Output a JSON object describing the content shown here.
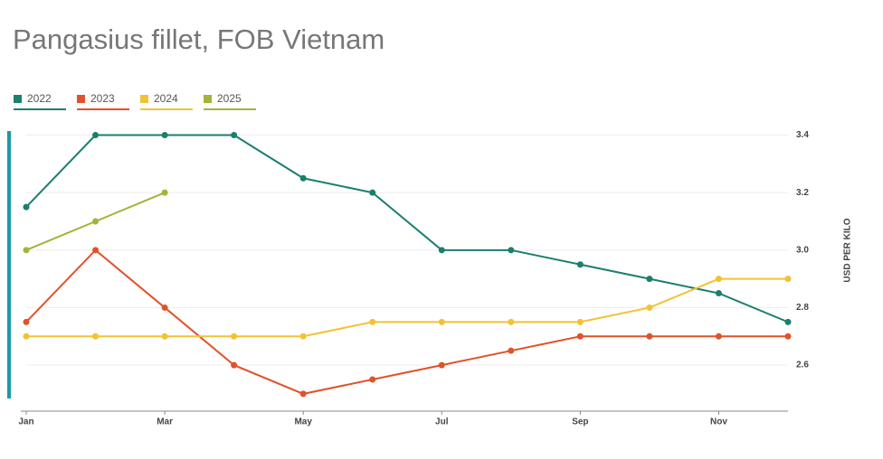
{
  "chart_data": {
    "type": "line",
    "title": "Pangasius fillet, FOB Vietnam",
    "y_axis_label": "USD PER KILO",
    "categories": [
      "Jan",
      null,
      "Mar",
      null,
      "May",
      null,
      "Jul",
      null,
      "Sep",
      null,
      "Nov",
      null
    ],
    "series": [
      {
        "name": "2022",
        "color": "#1a7f6e",
        "values": [
          3.15,
          3.4,
          3.4,
          3.4,
          3.25,
          3.2,
          3.0,
          3.0,
          2.95,
          2.9,
          2.85,
          2.75
        ]
      },
      {
        "name": "2023",
        "color": "#e0522a",
        "values": [
          2.75,
          3.0,
          2.8,
          2.6,
          2.5,
          2.55,
          2.6,
          2.65,
          2.7,
          2.7,
          2.7,
          2.7
        ]
      },
      {
        "name": "2024",
        "color": "#f2c232",
        "values": [
          2.7,
          2.7,
          2.7,
          2.7,
          2.7,
          2.75,
          2.75,
          2.75,
          2.75,
          2.8,
          2.9,
          2.9
        ]
      },
      {
        "name": "2025",
        "color": "#a4b33a",
        "values": [
          3.0,
          3.1,
          3.2,
          null,
          null,
          null,
          null,
          null,
          null,
          null,
          null,
          null
        ]
      }
    ],
    "ylim": [
      2.44,
      3.43
    ],
    "yticks": [
      2.6,
      2.8,
      {
        "value": 3,
        "label": "3.0"
      },
      3.2,
      3.4
    ],
    "grid": true
  }
}
